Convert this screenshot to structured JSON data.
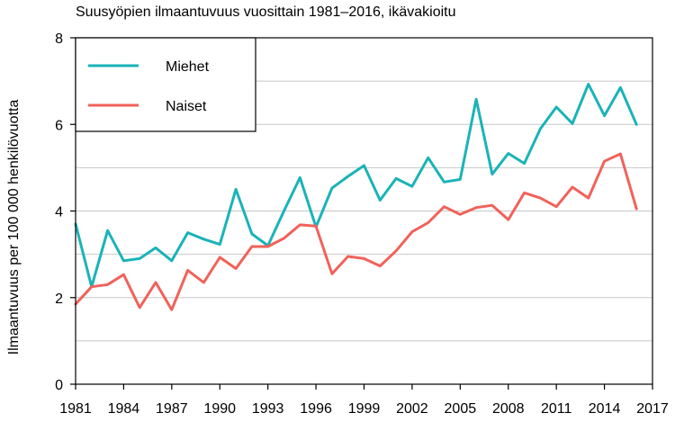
{
  "chart_data": {
    "type": "line",
    "title": "Suusyöpien ilmaantuvuus vuosittain 1981–2016, ikävakioitu",
    "xlabel": "",
    "ylabel": "Ilmaantuvuus per 100 000 henkilövuotta",
    "xlim": [
      1981,
      2017
    ],
    "ylim": [
      0,
      8
    ],
    "x_ticks": [
      1981,
      1984,
      1987,
      1990,
      1993,
      1996,
      1999,
      2002,
      2005,
      2008,
      2011,
      2014,
      2017
    ],
    "y_ticks": [
      0,
      2,
      4,
      6,
      8
    ],
    "grid": "horizontal",
    "legend_position": "top-left",
    "x": [
      1981,
      1982,
      1983,
      1984,
      1985,
      1986,
      1987,
      1988,
      1989,
      1990,
      1991,
      1992,
      1993,
      1994,
      1995,
      1996,
      1997,
      1998,
      1999,
      2000,
      2001,
      2002,
      2003,
      2004,
      2005,
      2006,
      2007,
      2008,
      2009,
      2010,
      2011,
      2012,
      2013,
      2014,
      2015,
      2016
    ],
    "series": [
      {
        "name": "Miehet",
        "color": "#1ab3b8",
        "values": [
          3.7,
          2.25,
          3.55,
          2.85,
          2.9,
          3.15,
          2.85,
          3.5,
          3.35,
          3.23,
          4.5,
          3.47,
          3.2,
          4.0,
          4.77,
          3.63,
          4.53,
          4.8,
          5.05,
          4.25,
          4.75,
          4.57,
          5.23,
          4.67,
          4.73,
          6.58,
          4.85,
          5.33,
          5.1,
          5.9,
          6.4,
          6.02,
          6.93,
          6.2,
          6.85,
          6.0
        ]
      },
      {
        "name": "Naiset",
        "color": "#f0625a",
        "values": [
          1.85,
          2.25,
          2.3,
          2.53,
          1.77,
          2.35,
          1.72,
          2.63,
          2.35,
          2.93,
          2.67,
          3.18,
          3.18,
          3.37,
          3.68,
          3.65,
          2.55,
          2.95,
          2.9,
          2.73,
          3.08,
          3.52,
          3.73,
          4.1,
          3.92,
          4.08,
          4.13,
          3.8,
          4.42,
          4.3,
          4.1,
          4.55,
          4.3,
          5.15,
          5.32,
          4.05
        ]
      }
    ]
  }
}
